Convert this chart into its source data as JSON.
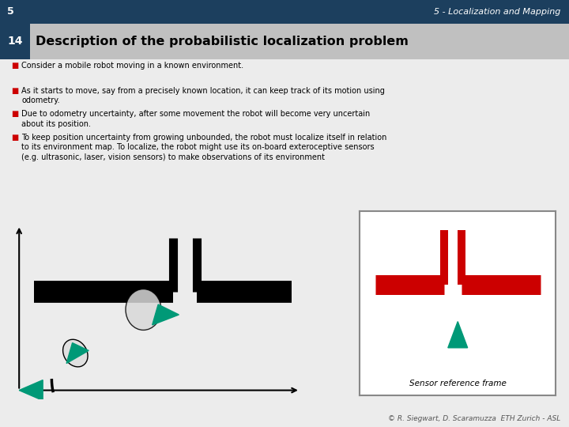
{
  "title_top": "5 - Localization and Mapping",
  "slide_number": "5",
  "slide_sub": "14",
  "heading": "Description of the probabilistic localization problem",
  "bullets": [
    "Consider a mobile robot moving in a known environment.",
    "As it starts to move, say from a precisely known location, it can keep track of its motion using odometry.",
    "Due to odometry uncertainty, after some movement the robot will become very uncertain about its position.",
    "To keep position uncertainty from growing unbounded, the robot must localize itself in relation to its environment map. To localize, the robot might use its on-board exteroceptive sensors (e.g. ultrasonic, laser, vision sensors) to make observations of its environment"
  ],
  "bg_color": "#ececec",
  "header_bg": "#1c3f5e",
  "heading_bg": "#c0c0c0",
  "bullet_color": "#cc0000",
  "text_color": "#000000",
  "teal_color": "#009977",
  "red_color": "#cc0000",
  "footer_text": "© R. Siegwart, D. Scaramuzza  ETH Zurich - ASL",
  "sensor_ref_text": "Sensor reference frame"
}
